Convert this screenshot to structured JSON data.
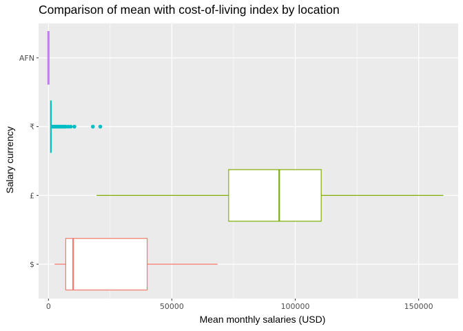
{
  "chart_data": {
    "type": "boxplot",
    "title": "Comparison of mean with cost-of-living index by location",
    "xlabel": "Mean monthly salaries (USD)",
    "ylabel": "Salary currency",
    "orientation": "horizontal",
    "xlim": [
      -4000,
      166000
    ],
    "x_ticks": [
      0,
      50000,
      100000,
      150000
    ],
    "x_tick_labels": [
      "0",
      "50000",
      "100000",
      "150000"
    ],
    "grid": true,
    "legend": "none",
    "categories": [
      "AFN",
      "₹",
      "£",
      "$"
    ],
    "boxes": [
      {
        "category": "AFN",
        "color": "#C77CFF",
        "whisker_low": 0,
        "q1": 0,
        "median": 0,
        "q3": 0,
        "whisker_high": 0,
        "outliers": []
      },
      {
        "category": "₹",
        "color": "#00BFC4",
        "whisker_low": 700,
        "q1": 900,
        "median": 1000,
        "q3": 1100,
        "whisker_high": 1300,
        "outliers": [
          1500,
          2000,
          2500,
          3000,
          3500,
          4000,
          4500,
          5000,
          5500,
          6000,
          6500,
          7000,
          8000,
          9000,
          10500,
          18000,
          21000
        ]
      },
      {
        "category": "£",
        "color": "#7CAE00",
        "whisker_low": 19500,
        "q1": 73000,
        "median": 93500,
        "q3": 110500,
        "whisker_high": 160000,
        "outliers": []
      },
      {
        "category": "$",
        "color": "#F8766D",
        "whisker_low": 2500,
        "q1": 7000,
        "median": 10000,
        "q3": 40000,
        "whisker_high": 68500,
        "outliers": []
      }
    ]
  }
}
